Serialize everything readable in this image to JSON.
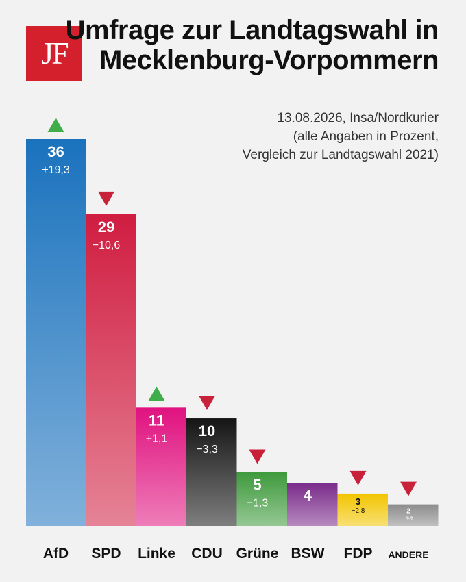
{
  "logo": {
    "text": "JF"
  },
  "header": {
    "title": "Umfrage zur Landtagswahl in Mecklenburg-Vorpommern",
    "subtitle_lines": [
      "13.08.2026, Insa/Nordkurier",
      "(alle Angaben in Prozent,",
      "Vergleich zur Landtagswahl 2021)"
    ]
  },
  "chart_data": {
    "type": "bar",
    "title": "Umfrage zur Landtagswahl in Mecklenburg-Vorpommern",
    "categories": [
      "AfD",
      "SPD",
      "Linke",
      "CDU",
      "Grüne",
      "BSW",
      "FDP",
      "ANDERE"
    ],
    "values": [
      36,
      29,
      11,
      10,
      5,
      4,
      3,
      2
    ],
    "value_labels": [
      "36",
      "29",
      "11",
      "10",
      "5",
      "4",
      "3",
      "2"
    ],
    "changes": [
      "+19,3",
      "−10,6",
      "+1,1",
      "−3,3",
      "−1,3",
      "",
      "−2,8",
      "−5,6"
    ],
    "trend": [
      "up",
      "down",
      "up",
      "down",
      "down",
      "none",
      "down",
      "down"
    ],
    "colors": [
      "#1a72bd",
      "#d01d40",
      "#e0127f",
      "#151515",
      "#3e9a3c",
      "#7a2b8a",
      "#f2c500",
      "#8c8c8c"
    ],
    "trend_colors": {
      "up": "#3fae4a",
      "down": "#c8223a"
    },
    "ylim": [
      0,
      36
    ]
  }
}
